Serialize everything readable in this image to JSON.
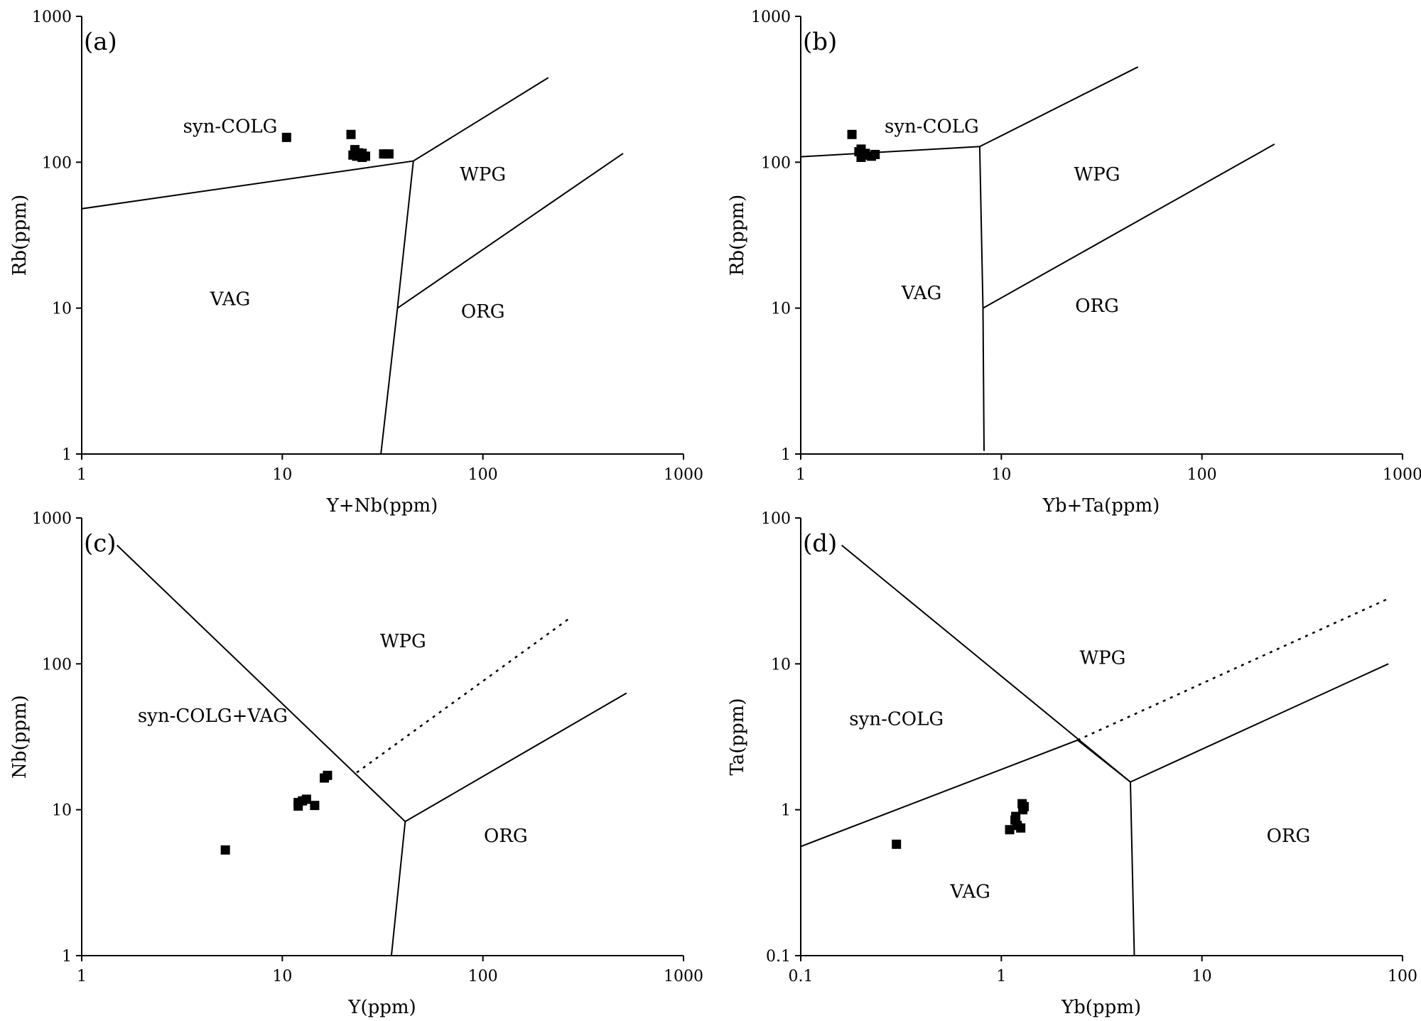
{
  "chart_data": [
    {
      "type": "scatter",
      "panel_label": "(a)",
      "xlabel": "Y+Nb(ppm)",
      "ylabel": "Rb(ppm)",
      "xscale": "log",
      "yscale": "log",
      "xlim": [
        1,
        1000
      ],
      "ylim": [
        1,
        1000
      ],
      "xticks": [
        1,
        10,
        100,
        1000
      ],
      "xtick_labels": [
        "1",
        "10",
        "100",
        "1000"
      ],
      "yticks": [
        1,
        10,
        100,
        1000
      ],
      "ytick_labels": [
        "1",
        "10",
        "100",
        "1000"
      ],
      "regions": [
        {
          "label": "syn-COLG",
          "x": 5.5,
          "y": 160
        },
        {
          "label": "VAG",
          "x": 5.5,
          "y": 10.5
        },
        {
          "label": "WPG",
          "x": 100,
          "y": 75
        },
        {
          "label": "ORG",
          "x": 100,
          "y": 8.6
        }
      ],
      "boundaries": [
        {
          "style": "solid",
          "points": [
            [
              1,
              48
            ],
            [
              45,
              102
            ],
            [
              212,
              380
            ]
          ]
        },
        {
          "style": "solid",
          "points": [
            [
              45,
              102
            ],
            [
              37.5,
              10
            ]
          ]
        },
        {
          "style": "solid",
          "points": [
            [
              37.5,
              10
            ],
            [
              31,
              1
            ]
          ]
        },
        {
          "style": "solid",
          "points": [
            [
              37.5,
              10
            ],
            [
              500,
              115
            ]
          ]
        }
      ],
      "points": [
        {
          "x": 10.5,
          "y": 148
        },
        {
          "x": 22,
          "y": 155
        },
        {
          "x": 23,
          "y": 122
        },
        {
          "x": 24,
          "y": 116
        },
        {
          "x": 25,
          "y": 115
        },
        {
          "x": 23.5,
          "y": 110
        },
        {
          "x": 25,
          "y": 108
        },
        {
          "x": 26,
          "y": 110
        },
        {
          "x": 22.5,
          "y": 112
        },
        {
          "x": 32,
          "y": 114
        },
        {
          "x": 34,
          "y": 114
        }
      ]
    },
    {
      "type": "scatter",
      "panel_label": "(b)",
      "xlabel": "Yb+Ta(ppm)",
      "ylabel": "Rb(ppm)",
      "xscale": "log",
      "yscale": "log",
      "xlim": [
        1,
        1000
      ],
      "ylim": [
        1,
        1000
      ],
      "xticks": [
        1,
        10,
        100,
        1000
      ],
      "xtick_labels": [
        "1",
        "10",
        "100",
        "1000"
      ],
      "yticks": [
        1,
        10,
        100,
        1000
      ],
      "ytick_labels": [
        "1",
        "10",
        "100",
        "1000"
      ],
      "regions": [
        {
          "label": "syn-COLG",
          "x": 4.5,
          "y": 160
        },
        {
          "label": "VAG",
          "x": 4,
          "y": 11.5
        },
        {
          "label": "WPG",
          "x": 30,
          "y": 75
        },
        {
          "label": "ORG",
          "x": 30,
          "y": 9.4
        }
      ],
      "boundaries": [
        {
          "style": "solid",
          "points": [
            [
              1,
              109
            ],
            [
              7.8,
              128
            ],
            [
              48,
              450
            ]
          ]
        },
        {
          "style": "solid",
          "points": [
            [
              7.8,
              128
            ],
            [
              8.1,
              10
            ]
          ]
        },
        {
          "style": "solid",
          "points": [
            [
              8.1,
              10
            ],
            [
              8.2,
              1.05
            ]
          ]
        },
        {
          "style": "solid",
          "points": [
            [
              8.1,
              10
            ],
            [
              230,
              133
            ]
          ]
        }
      ],
      "points": [
        {
          "x": 1.8,
          "y": 155
        },
        {
          "x": 2.0,
          "y": 123
        },
        {
          "x": 1.95,
          "y": 118
        },
        {
          "x": 2.1,
          "y": 115
        },
        {
          "x": 2.0,
          "y": 108
        },
        {
          "x": 2.25,
          "y": 110
        },
        {
          "x": 2.35,
          "y": 113
        },
        {
          "x": 2.1,
          "y": 112
        }
      ]
    },
    {
      "type": "scatter",
      "panel_label": "(c)",
      "xlabel": "Y(ppm)",
      "ylabel": "Nb(ppm)",
      "xscale": "log",
      "yscale": "log",
      "xlim": [
        1,
        1000
      ],
      "ylim": [
        1,
        1000
      ],
      "xticks": [
        1,
        10,
        100,
        1000
      ],
      "xtick_labels": [
        "1",
        "10",
        "100",
        "1000"
      ],
      "yticks": [
        1,
        10,
        100,
        1000
      ],
      "ytick_labels": [
        "1",
        "10",
        "100",
        "1000"
      ],
      "regions": [
        {
          "label": "syn-COLG+VAG",
          "x": 4.5,
          "y": 40
        },
        {
          "label": "WPG",
          "x": 40,
          "y": 130
        },
        {
          "label": "ORG",
          "x": 130,
          "y": 6
        }
      ],
      "boundaries": [
        {
          "style": "solid",
          "points": [
            [
              1.5,
              650
            ],
            [
              41,
              8.3
            ]
          ]
        },
        {
          "style": "solid",
          "points": [
            [
              41,
              8.3
            ],
            [
              35,
              1
            ]
          ]
        },
        {
          "style": "solid",
          "points": [
            [
              41,
              8.3
            ],
            [
              520,
              63
            ]
          ]
        },
        {
          "style": "dotted",
          "points": [
            [
              23.5,
              18
            ],
            [
              270,
              205
            ]
          ]
        }
      ],
      "points": [
        {
          "x": 5.2,
          "y": 5.3
        },
        {
          "x": 12,
          "y": 11.2
        },
        {
          "x": 12,
          "y": 10.6
        },
        {
          "x": 12.6,
          "y": 11.5
        },
        {
          "x": 13.2,
          "y": 11.8
        },
        {
          "x": 14.5,
          "y": 10.7
        },
        {
          "x": 16.2,
          "y": 16.5
        },
        {
          "x": 16.8,
          "y": 17.2
        }
      ]
    },
    {
      "type": "scatter",
      "panel_label": "(d)",
      "xlabel": "Yb(ppm)",
      "ylabel": "Ta(ppm)",
      "xscale": "log",
      "yscale": "log",
      "xlim": [
        0.1,
        100
      ],
      "ylim": [
        0.1,
        100
      ],
      "xticks": [
        0.1,
        1,
        10,
        100
      ],
      "xtick_labels": [
        "0.1",
        "1",
        "10",
        "100"
      ],
      "yticks": [
        0.1,
        1,
        10,
        100
      ],
      "ytick_labels": [
        "0.1",
        "1",
        "10",
        "100"
      ],
      "regions": [
        {
          "label": "syn-COLG",
          "x": 0.3,
          "y": 3.8
        },
        {
          "label": "WPG",
          "x": 3.2,
          "y": 10
        },
        {
          "label": "VAG",
          "x": 0.7,
          "y": 0.25
        },
        {
          "label": "ORG",
          "x": 27,
          "y": 0.6
        }
      ],
      "boundaries": [
        {
          "style": "solid",
          "points": [
            [
              0.1,
              0.56
            ],
            [
              2.4,
              3
            ],
            [
              4.4,
              1.55
            ]
          ]
        },
        {
          "style": "solid",
          "points": [
            [
              0.16,
              65
            ],
            [
              4.4,
              1.55
            ]
          ]
        },
        {
          "style": "solid",
          "points": [
            [
              4.4,
              1.55
            ],
            [
              4.6,
              0.1
            ]
          ]
        },
        {
          "style": "solid",
          "points": [
            [
              4.4,
              1.55
            ],
            [
              85,
              10
            ]
          ]
        },
        {
          "style": "dotted",
          "points": [
            [
              2.4,
              3
            ],
            [
              85,
              28
            ]
          ]
        }
      ],
      "points": [
        {
          "x": 0.3,
          "y": 0.58
        },
        {
          "x": 1.1,
          "y": 0.73
        },
        {
          "x": 1.18,
          "y": 0.9
        },
        {
          "x": 1.17,
          "y": 0.85
        },
        {
          "x": 1.2,
          "y": 0.78
        },
        {
          "x": 1.25,
          "y": 0.75
        },
        {
          "x": 1.27,
          "y": 1.1
        },
        {
          "x": 1.3,
          "y": 1.05
        },
        {
          "x": 1.28,
          "y": 1.0
        }
      ]
    }
  ]
}
